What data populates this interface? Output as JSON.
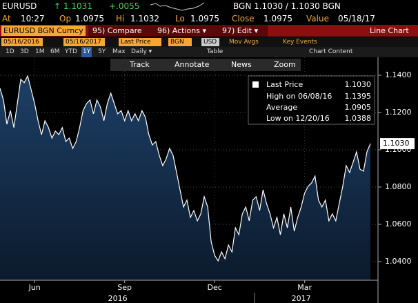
{
  "header": {
    "ticker": "EURUSD",
    "last": "↑ 1.1031",
    "change": "+.0055",
    "bid_ask": "BGN  1.1030 / 1.1030  BGN",
    "row2": [
      [
        "At",
        "10:27"
      ],
      [
        "Op",
        "1.0975"
      ],
      [
        "Hi",
        "1.1032"
      ],
      [
        "Lo",
        "1.0975"
      ],
      [
        "Close",
        "1.0975"
      ],
      [
        "Value",
        "05/18/17"
      ]
    ]
  },
  "toolbar": {
    "security": "EURUSD BGN Curncy",
    "buttons": [
      "95) Compare",
      "96) Actions ▾",
      "97) Edit ▾"
    ],
    "view": "Line Chart",
    "start": "05/16/2016",
    "end": "05/16/2017",
    "field": "Last Price",
    "source": "BGN",
    "currency": "USD",
    "checks": [
      "Mov Avgs",
      "Key Events"
    ],
    "periods": [
      "1D",
      "3D",
      "1M",
      "6M",
      "YTD",
      "1Y",
      "5Y",
      "Max"
    ],
    "frequency": "Daily ▾",
    "table": "Table",
    "content": "Chart Content"
  },
  "chart_tools": [
    "Track",
    "Annotate",
    "News",
    "Zoom"
  ],
  "legend": [
    {
      "label": "Last Price",
      "value": "1.1030"
    },
    {
      "label": "High on 06/08/16",
      "value": "1.1395"
    },
    {
      "label": "Average",
      "value": "1.0905"
    },
    {
      "label": "Low on 12/20/16",
      "value": "1.0388"
    }
  ],
  "chart_data": {
    "type": "line",
    "color": "#ffffff",
    "fill": "#14304f",
    "grid": true,
    "values": [
      1.133,
      1.1267,
      1.1137,
      1.121,
      1.1119,
      1.1248,
      1.1378,
      1.136,
      1.1396,
      1.1322,
      1.1248,
      1.1156,
      1.1081,
      1.1156,
      1.1119,
      1.1063,
      1.11,
      1.1081,
      1.1119,
      1.1044,
      1.1063,
      1.1007,
      1.1044,
      1.1119,
      1.121,
      1.1248,
      1.1267,
      1.1193,
      1.1267,
      1.123,
      1.1156,
      1.1248,
      1.1304,
      1.1248,
      1.1193,
      1.121,
      1.1156,
      1.121,
      1.1156,
      1.1193,
      1.1156,
      1.121,
      1.1174,
      1.1081,
      1.1026,
      1.1044,
      1.097,
      1.0915,
      1.0952,
      1.1007,
      1.097,
      1.0878,
      1.0785,
      1.0693,
      1.073,
      1.0637,
      1.0674,
      1.0619,
      1.0656,
      1.0748,
      1.0693,
      1.0507,
      1.0433,
      1.0404,
      1.0452,
      1.0415,
      1.0489,
      1.0452,
      1.0581,
      1.0544,
      1.0656,
      1.0693,
      1.0619,
      1.073,
      1.0748,
      1.0674,
      1.0785,
      1.0711,
      1.0656,
      1.0581,
      1.0637,
      1.0544,
      1.0656,
      1.0581,
      1.0693,
      1.0563,
      1.0637,
      1.0693,
      1.0767,
      1.0804,
      1.0822,
      1.0859,
      1.073,
      1.0693,
      1.073,
      1.0619,
      1.0656,
      1.0619,
      1.0711,
      1.0804,
      1.0915,
      1.0878,
      1.0933,
      1.0989,
      1.0896,
      1.0885,
      1.0989,
      1.1033
    ],
    "last_label": "1.1030",
    "ylim": [
      1.03,
      1.15
    ],
    "yticks": [
      {
        "value": 1.04,
        "label": "1.0400"
      },
      {
        "value": 1.06,
        "label": "1.0600"
      },
      {
        "value": 1.08,
        "label": "1.0800"
      },
      {
        "value": 1.1,
        "label": "1.1000"
      },
      {
        "value": 1.12,
        "label": "1.1200"
      },
      {
        "value": 1.14,
        "label": "1.1400"
      }
    ],
    "xticks": [
      {
        "value": 10,
        "label": "Jun"
      },
      {
        "value": 36,
        "label": "Sep"
      },
      {
        "value": 62,
        "label": "Dec"
      },
      {
        "value": 88,
        "label": "Mar"
      }
    ],
    "years": [
      {
        "value": 34,
        "label": "2016"
      },
      {
        "value": 87,
        "label": "2017"
      }
    ]
  }
}
